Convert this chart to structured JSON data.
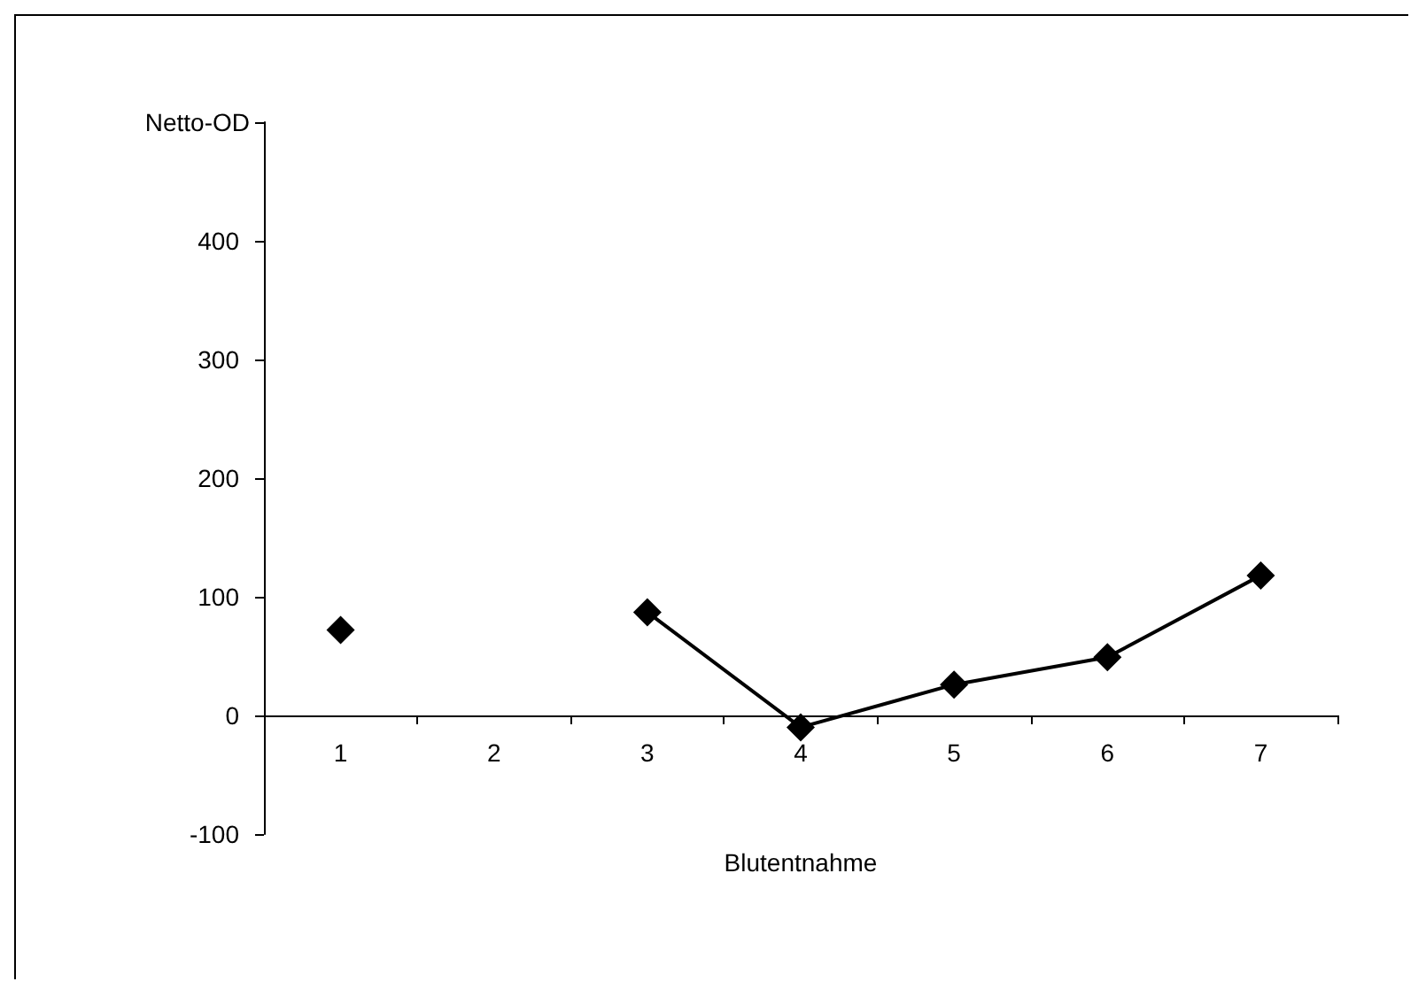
{
  "chart_data": {
    "type": "line",
    "xlabel": "Blutentnahme",
    "ylabel": "Netto-OD",
    "categories": [
      "1",
      "2",
      "3",
      "4",
      "5",
      "6",
      "7"
    ],
    "series": [
      {
        "color": "#000000",
        "values": [
          72,
          null,
          87,
          -10,
          26,
          49,
          118
        ]
      }
    ],
    "ylim": [
      -100,
      500
    ],
    "yticks": [
      -100,
      0,
      100,
      200,
      300,
      400,
      {
        "value": 500,
        "label": null
      }
    ],
    "grid": false,
    "marker": "diamond",
    "line_style": "solid"
  }
}
